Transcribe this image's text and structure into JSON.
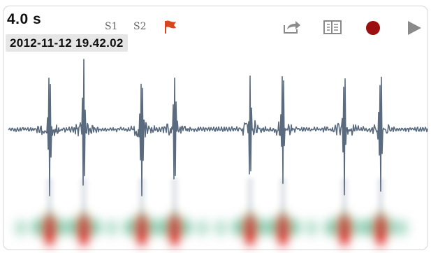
{
  "header": {
    "duration": "4.0 s",
    "timestamp": "2012-11-12 19.42.02"
  },
  "toolbar": {
    "s1_label": "S1",
    "s2_label": "S2",
    "flag_icon": "flag-icon",
    "share_icon": "share-icon",
    "view_icon": "view-toggle-icon",
    "record_icon": "record-icon",
    "play_icon": "play-icon"
  },
  "colors": {
    "waveform": "#5a6b80",
    "flag": "#d9461e",
    "record": "#9c0f0f",
    "icons": "#8a8a8a",
    "spectrogram_hot": "#e0161b",
    "spectrogram_warm": "#2f8f3a",
    "spectrogram_cool": "#7fc7a8"
  }
}
